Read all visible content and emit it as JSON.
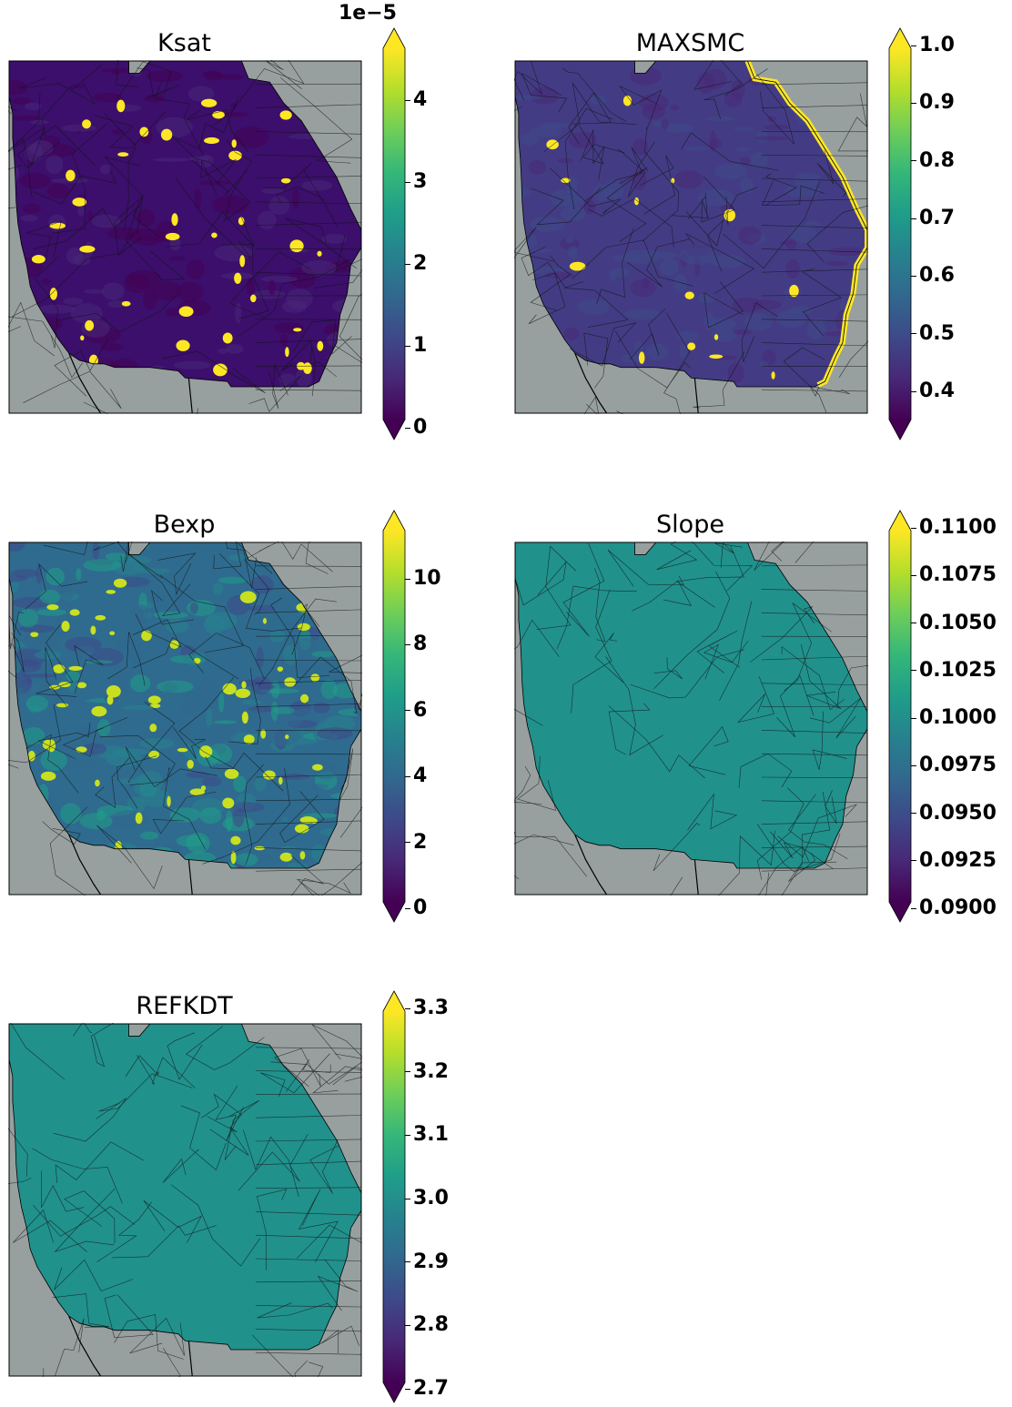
{
  "colors": {
    "background": "#98a09f",
    "state_lines": "#111111",
    "viridis": [
      "#440154",
      "#482878",
      "#3e4989",
      "#31688e",
      "#26828e",
      "#1f9e89",
      "#35b779",
      "#6ece58",
      "#b5de2b",
      "#fde725"
    ]
  },
  "panels": [
    {
      "id": "ksat",
      "title": "Ksat",
      "multiplier": "1e−5",
      "ticks": [
        "4",
        "3",
        "2",
        "1",
        "0"
      ],
      "fill": "#3b0f6b",
      "style": "speckled-purple",
      "highlight": "#fde725"
    },
    {
      "id": "maxsmc",
      "title": "MAXSMC",
      "multiplier": "",
      "ticks": [
        "1.0",
        "0.9",
        "0.8",
        "0.7",
        "0.6",
        "0.5",
        "0.4"
      ],
      "fill": "#433c84",
      "style": "uniform-dark",
      "highlight": "#fde725"
    },
    {
      "id": "bexp",
      "title": "Bexp",
      "multiplier": "",
      "ticks": [
        "10",
        "8",
        "6",
        "4",
        "2",
        "0"
      ],
      "fill": "#2f6b8e",
      "style": "mixed-teal",
      "highlight": "#c8e020"
    },
    {
      "id": "slope",
      "title": "Slope",
      "multiplier": "",
      "ticks": [
        "0.1100",
        "0.1075",
        "0.1050",
        "0.1025",
        "0.1000",
        "0.0975",
        "0.0950",
        "0.0925",
        "0.0900"
      ],
      "fill": "#21918c",
      "style": "uniform",
      "highlight": ""
    },
    {
      "id": "refkdt",
      "title": "REFKDT",
      "multiplier": "",
      "ticks": [
        "3.3",
        "3.2",
        "3.1",
        "3.0",
        "2.9",
        "2.8",
        "2.7"
      ],
      "fill": "#21918c",
      "style": "uniform",
      "highlight": ""
    }
  ]
}
